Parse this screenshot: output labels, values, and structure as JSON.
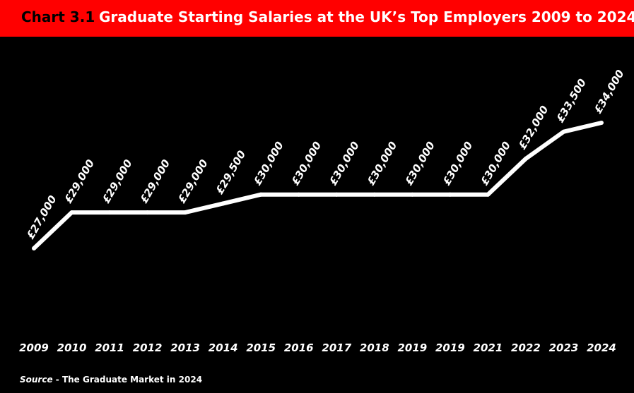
{
  "header": {
    "chart_label": "Chart 3.1",
    "title": "Graduate Starting Salaries at the UK’s Top Employers 2009 to 2024"
  },
  "colors": {
    "header_bg": "#FF0000",
    "background": "#000000",
    "line": "#FFFFFF"
  },
  "chart_data": {
    "type": "line",
    "title": "Graduate Starting Salaries at the UK’s Top Employers 2009 to 2024",
    "categories": [
      "2009",
      "2010",
      "2011",
      "2012",
      "2013",
      "2014",
      "2015",
      "2016",
      "2017",
      "2018",
      "2019",
      "2019",
      "2021",
      "2022",
      "2023",
      "2024"
    ],
    "series": [
      {
        "values": [
          27000,
          29000,
          29000,
          29000,
          29000,
          29500,
          30000,
          30000,
          30000,
          30000,
          30000,
          30000,
          30000,
          32000,
          33500,
          34000
        ],
        "labels": [
          "£27,000",
          "£29,000",
          "£29,000",
          "£29,000",
          "£29,000",
          "£29,500",
          "£30,000",
          "£30,000",
          "£30,000",
          "£30,000",
          "£30,000",
          "£30,000",
          "£30,000",
          "£32,000",
          "£33,500",
          "£34,000"
        ]
      }
    ],
    "xlabel": "",
    "ylabel": "",
    "grid": false
  },
  "footer": {
    "source_label": "Source",
    "source_text": " - The Graduate Market in 2024"
  }
}
